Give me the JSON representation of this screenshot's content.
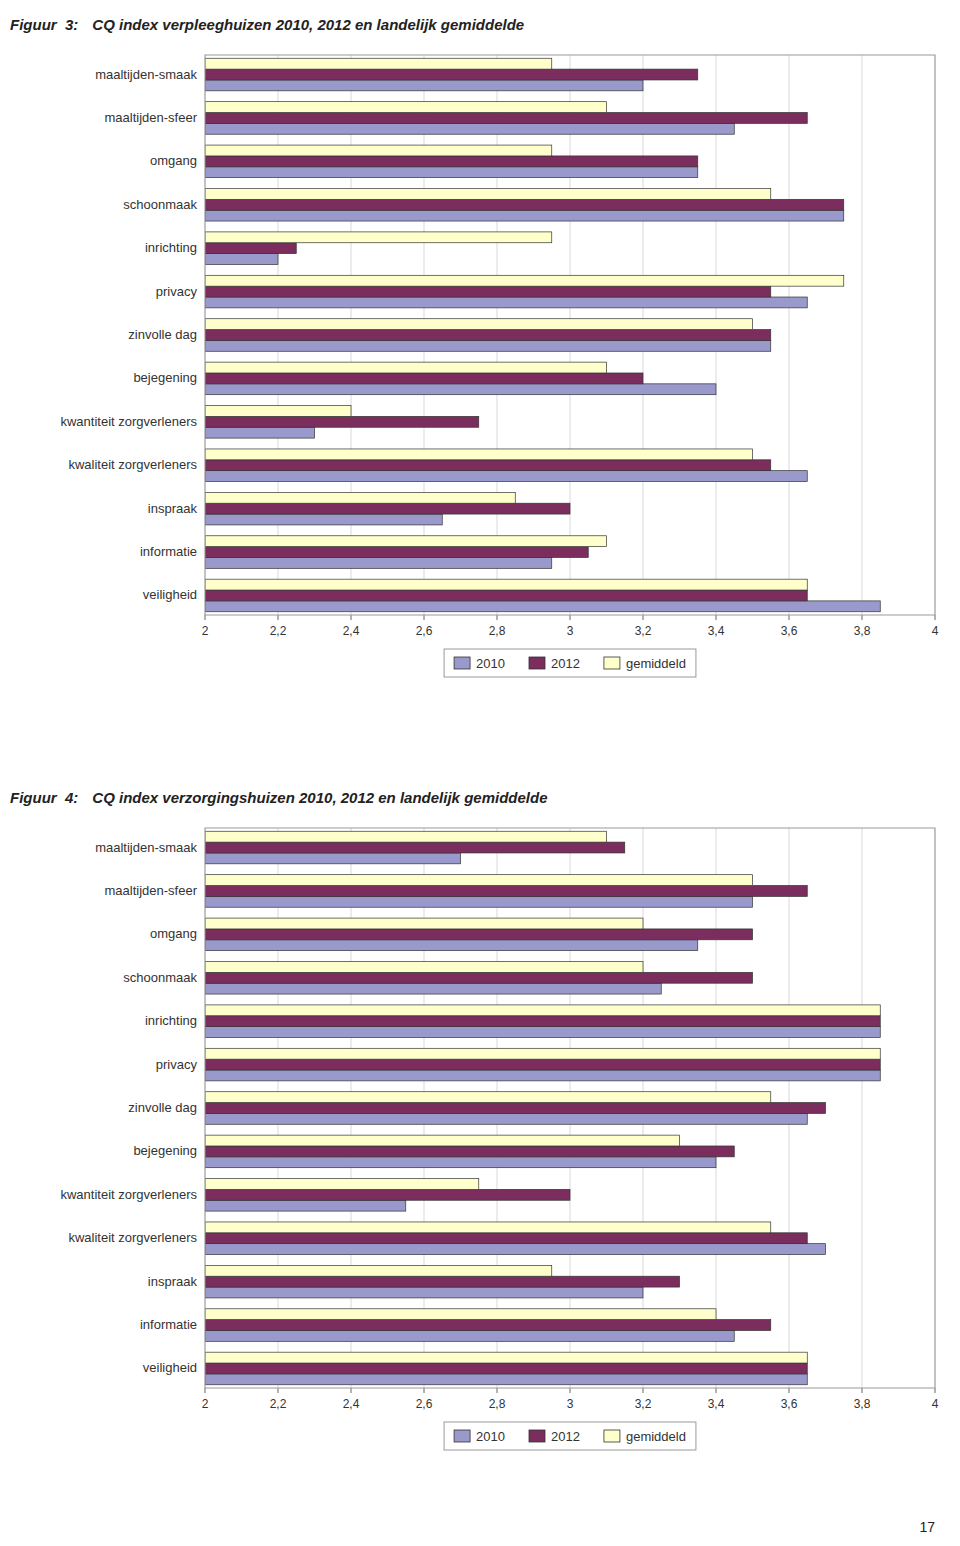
{
  "chart_data": [
    {
      "type": "bar",
      "orientation": "horizontal",
      "grid": true,
      "legend": "bottom",
      "title": "Figuur  3:",
      "subtitle": "CQ index verpleeghuizen 2010, 2012 en landelijk gemiddelde",
      "categories": [
        "maaltijden-smaak",
        "maaltijden-sfeer",
        "omgang",
        "schoonmaak",
        "inrichting",
        "privacy",
        "zinvolle dag",
        "bejegening",
        "kwantiteit zorgverleners",
        "kwaliteit zorgverleners",
        "inspraak",
        "informatie",
        "veiligheid"
      ],
      "series": [
        {
          "name": "2010",
          "color": "#9999CC",
          "values": [
            3.2,
            3.45,
            3.35,
            3.75,
            2.2,
            3.65,
            3.55,
            3.4,
            2.3,
            3.65,
            2.65,
            2.95,
            3.85
          ]
        },
        {
          "name": "2012",
          "color": "#7B2D5E",
          "values": [
            3.35,
            3.65,
            3.35,
            3.75,
            2.25,
            3.55,
            3.55,
            3.2,
            2.75,
            3.55,
            3.0,
            3.05,
            3.65
          ]
        },
        {
          "name": "gemiddeld",
          "color": "#FFFFCC",
          "values": [
            2.95,
            3.1,
            2.95,
            3.55,
            2.95,
            3.75,
            3.5,
            3.1,
            2.4,
            3.5,
            2.85,
            3.1,
            3.65
          ]
        }
      ],
      "xlim": [
        2,
        4
      ],
      "xticks": [
        2,
        {
          "value": 2.2,
          "label": "2,2"
        },
        {
          "value": 2.4,
          "label": "2,4"
        },
        {
          "value": 2.6,
          "label": "2,6"
        },
        {
          "value": 2.8,
          "label": "2,8"
        },
        3,
        {
          "value": 3.2,
          "label": "3,2"
        },
        {
          "value": 3.4,
          "label": "3,4"
        },
        {
          "value": 3.6,
          "label": "3,6"
        },
        {
          "value": 3.8,
          "label": "3,8"
        },
        4
      ]
    },
    {
      "type": "bar",
      "orientation": "horizontal",
      "grid": true,
      "legend": "bottom",
      "title": "Figuur  4:",
      "subtitle": "CQ index verzorgingshuizen 2010, 2012 en landelijk gemiddelde",
      "categories": [
        "maaltijden-smaak",
        "maaltijden-sfeer",
        "omgang",
        "schoonmaak",
        "inrichting",
        "privacy",
        "zinvolle dag",
        "bejegening",
        "kwantiteit zorgverleners",
        "kwaliteit zorgverleners",
        "inspraak",
        "informatie",
        "veiligheid"
      ],
      "series": [
        {
          "name": "2010",
          "color": "#9999CC",
          "values": [
            2.7,
            3.5,
            3.35,
            3.25,
            3.85,
            3.85,
            3.65,
            3.4,
            2.55,
            3.7,
            3.2,
            3.45,
            3.65
          ]
        },
        {
          "name": "2012",
          "color": "#7B2D5E",
          "values": [
            3.15,
            3.65,
            3.5,
            3.5,
            3.85,
            3.85,
            3.7,
            3.45,
            3.0,
            3.65,
            3.3,
            3.55,
            3.65
          ]
        },
        {
          "name": "gemiddeld",
          "color": "#FFFFCC",
          "values": [
            3.1,
            3.5,
            3.2,
            3.2,
            3.85,
            3.85,
            3.55,
            3.3,
            2.75,
            3.55,
            2.95,
            3.4,
            3.65
          ]
        }
      ],
      "xlim": [
        2,
        4
      ],
      "xticks": [
        2,
        {
          "value": 2.2,
          "label": "2,2"
        },
        {
          "value": 2.4,
          "label": "2,4"
        },
        {
          "value": 2.6,
          "label": "2,6"
        },
        {
          "value": 2.8,
          "label": "2,8"
        },
        3,
        {
          "value": 3.2,
          "label": "3,2"
        },
        {
          "value": 3.4,
          "label": "3,4"
        },
        {
          "value": 3.6,
          "label": "3,6"
        },
        {
          "value": 3.8,
          "label": "3,8"
        },
        4
      ],
      "annotations": [
        "17"
      ]
    }
  ]
}
